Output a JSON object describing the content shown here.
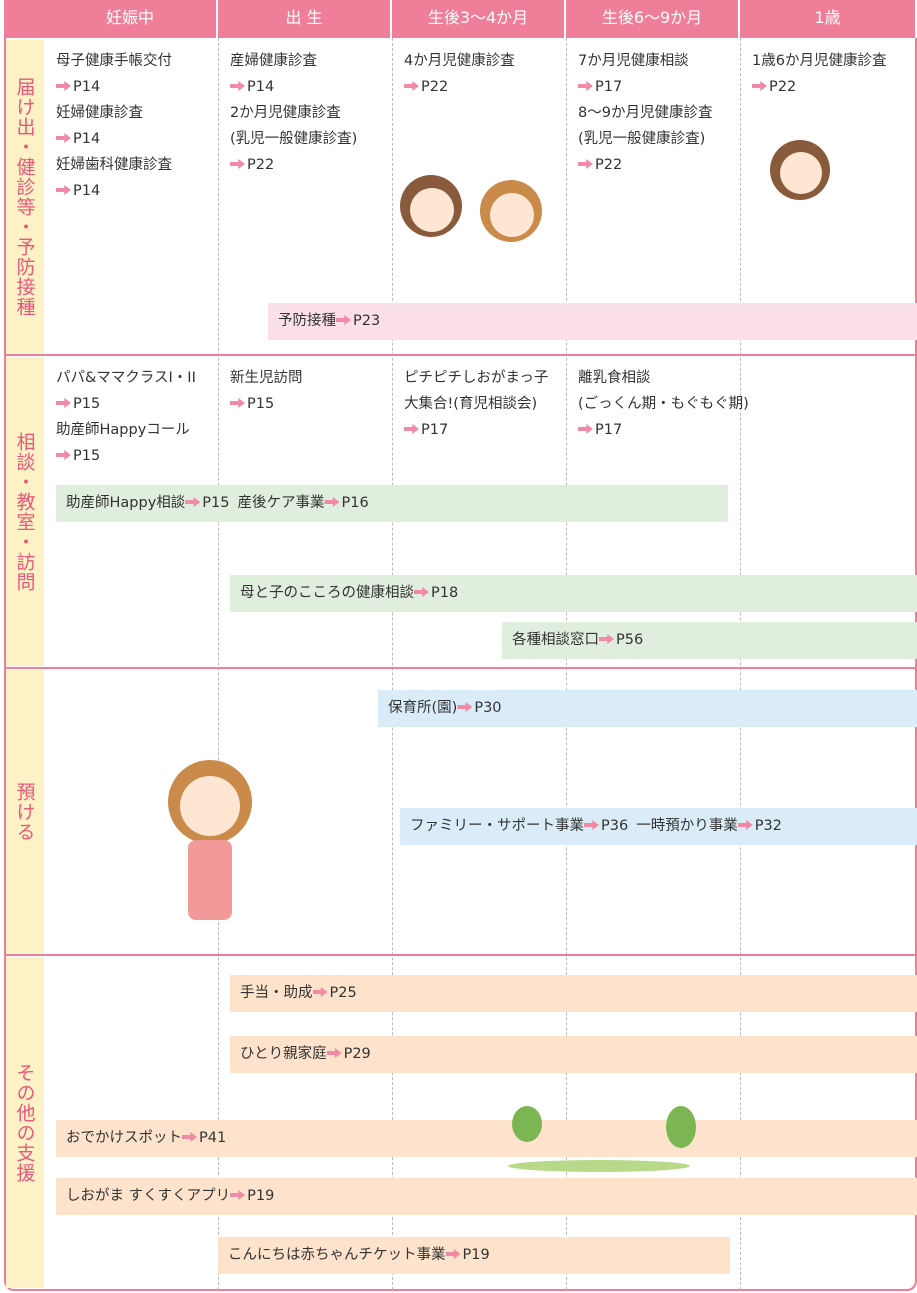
{
  "header": {
    "columns": [
      "妊娠中",
      "出 生",
      "生後3～4か月",
      "生後6～9か月",
      "1歳"
    ]
  },
  "rows": [
    {
      "label": "届け出・健診等・予防接種",
      "cells": [
        [
          {
            "lines": [
              "母子健康手帳交付"
            ],
            "page": "P14"
          },
          {
            "lines": [
              "妊婦健康診査"
            ],
            "page": "P14"
          },
          {
            "lines": [
              "妊婦歯科健康診査"
            ],
            "page": "P14"
          }
        ],
        [
          {
            "lines": [
              "産婦健康診査"
            ],
            "page": "P14"
          },
          {
            "lines": [
              "2か月児健康診査",
              "(乳児一般健康診査)"
            ],
            "page": "P22"
          }
        ],
        [
          {
            "lines": [
              "4か月児健康診査"
            ],
            "page": "P22"
          }
        ],
        [
          {
            "lines": [
              "7か月児健康相談"
            ],
            "page": "P17"
          },
          {
            "lines": [
              "8～9か月児健康診査",
              "(乳児一般健康診査)"
            ],
            "page": "P22"
          }
        ],
        [
          {
            "lines": [
              "1歳6か月児健康診査"
            ],
            "page": "P22"
          }
        ]
      ],
      "bars": [
        {
          "items": [
            {
              "text": "予防接種",
              "page": "P23"
            }
          ]
        }
      ]
    },
    {
      "label": "相談・教室・訪問",
      "cells": [
        [
          {
            "lines": [
              "パパ&ママクラスI・II"
            ],
            "page": "P15"
          },
          {
            "lines": [
              "助産師Happyコール"
            ],
            "page": "P15"
          }
        ],
        [
          {
            "lines": [
              "新生児訪問"
            ],
            "page": "P15"
          }
        ],
        [
          {
            "lines": [
              "ピチピチしおがまっ子",
              "大集合!(育児相談会)"
            ],
            "page": "P17"
          }
        ],
        [
          {
            "lines": [
              "離乳食相談",
              "(ごっくん期・もぐもぐ期)"
            ],
            "page": "P17"
          }
        ],
        []
      ],
      "bars": [
        {
          "items": [
            {
              "text": "助産師Happy相談",
              "page": "P15"
            },
            {
              "text": "産後ケア事業",
              "page": "P16"
            }
          ]
        },
        {
          "items": [
            {
              "text": "母と子のこころの健康相談",
              "page": "P18"
            }
          ]
        },
        {
          "items": [
            {
              "text": "各種相談窓口",
              "page": "P56"
            }
          ]
        }
      ]
    },
    {
      "label": "預ける",
      "cells": [
        [],
        [],
        [],
        [],
        []
      ],
      "bars": [
        {
          "items": [
            {
              "text": "保育所(園)",
              "page": "P30"
            }
          ]
        },
        {
          "items": [
            {
              "text": "ファミリー・サポート事業",
              "page": "P36"
            },
            {
              "text": "一時預かり事業",
              "page": "P32"
            }
          ]
        }
      ]
    },
    {
      "label": "その他の支援",
      "cells": [
        [],
        [],
        [],
        [],
        []
      ],
      "bars": [
        {
          "items": [
            {
              "text": "手当・助成",
              "page": "P25"
            }
          ]
        },
        {
          "items": [
            {
              "text": "ひとり親家庭",
              "page": "P29"
            }
          ]
        },
        {
          "items": [
            {
              "text": "おでかけスポット",
              "page": "P41"
            }
          ]
        },
        {
          "items": [
            {
              "text": "しおがま すくすくアプリ",
              "page": "P19"
            }
          ]
        },
        {
          "items": [
            {
              "text": "こんにちは赤ちゃんチケット事業",
              "page": "P19"
            }
          ]
        }
      ]
    }
  ]
}
